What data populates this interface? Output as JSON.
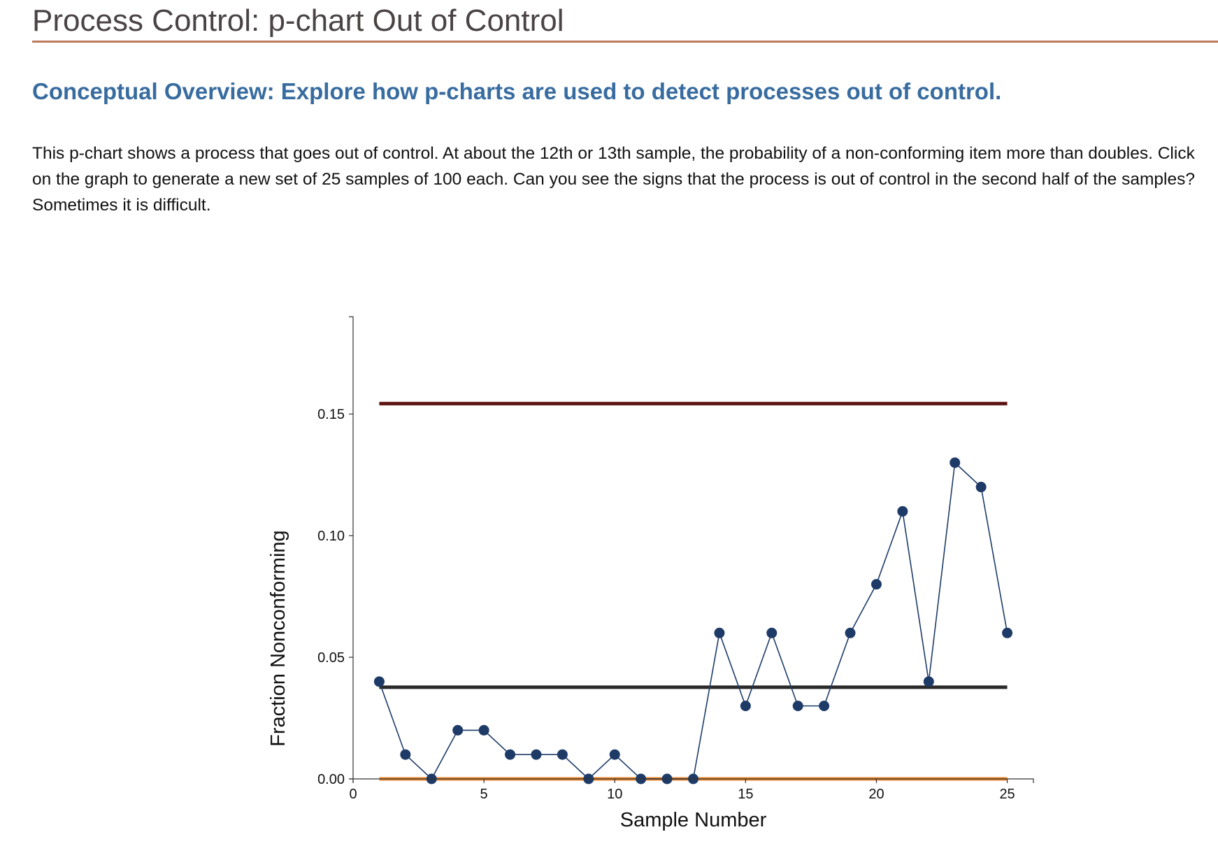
{
  "page": {
    "title": "Process Control: p-chart Out of Control",
    "overview": "Conceptual Overview: Explore how p-charts are used to detect processes out of control.",
    "description": "This p-chart shows a process that goes out of control. At about the 12th or 13th sample, the probability of a non-conforming item more than doubles. Click on the graph to generate a new set of 25 samples of 100 each. Can you see the signs that the process is out of control in the second half of the samples? Sometimes it is difficult."
  },
  "colors": {
    "ucl": "#5c1210",
    "center": "#2a2a2a",
    "lcl": "#e8862f",
    "points": "#1e3b68"
  },
  "chart_data": {
    "type": "line",
    "xlabel": "Sample Number",
    "ylabel": "Fraction Nonconforming",
    "xlim": [
      0,
      26
    ],
    "ylim": [
      0,
      0.19
    ],
    "x_ticks": [
      0,
      5,
      10,
      15,
      20,
      25
    ],
    "x_tick_labels": [
      "0",
      "5",
      "10",
      "15",
      "20",
      "25"
    ],
    "y_ticks": [
      0,
      0.05,
      0.1,
      0.15
    ],
    "y_tick_labels": [
      "0.00",
      "0.05",
      "0.10",
      "0.15"
    ],
    "grid": false,
    "series": [
      {
        "x": [
          1,
          2,
          3,
          4,
          5,
          6,
          7,
          8,
          9,
          10,
          11,
          12,
          13,
          14,
          15,
          16,
          17,
          18,
          19,
          20,
          21,
          22,
          23,
          24,
          25
        ],
        "y": [
          0.04,
          0.01,
          0.0,
          0.02,
          0.02,
          0.01,
          0.01,
          0.01,
          0.0,
          0.01,
          0.0,
          0.0,
          0.0,
          0.06,
          0.03,
          0.06,
          0.03,
          0.03,
          0.06,
          0.08,
          0.11,
          0.04,
          0.13,
          0.12,
          0.06
        ]
      }
    ],
    "control_lines": [
      {
        "role": "ucl",
        "x": [
          1,
          25
        ],
        "y": 0.1543
      },
      {
        "role": "center",
        "x": [
          1,
          25
        ],
        "y": 0.0377
      },
      {
        "role": "lcl",
        "x": [
          1,
          25
        ],
        "y": 0.0
      }
    ]
  }
}
